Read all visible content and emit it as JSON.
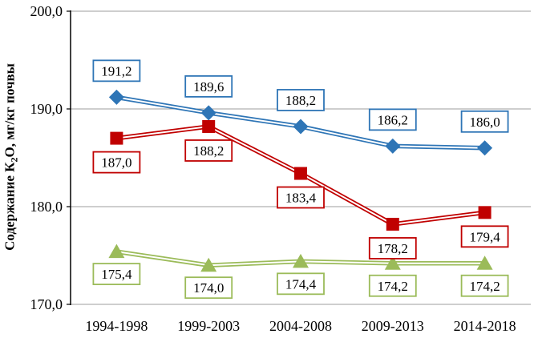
{
  "chart_data": {
    "type": "line",
    "title": "",
    "ylabel_parts": {
      "prefix": "Содержание К",
      "sub": "2",
      "suffix": "О, мг/кг почвы"
    },
    "categories": [
      "1994-1998",
      "1999-2003",
      "2004-2008",
      "2009-2013",
      "2014-2018"
    ],
    "series": [
      {
        "name": "series-blue-diamond",
        "marker": "diamond",
        "color": "#2E75B6",
        "values": [
          191.2,
          189.6,
          188.2,
          186.2,
          186.0
        ],
        "labels": [
          "191,2",
          "189,6",
          "188,2",
          "186,2",
          "186,0"
        ],
        "label_side": "above"
      },
      {
        "name": "series-red-square",
        "marker": "square",
        "color": "#C00000",
        "values": [
          187.0,
          188.2,
          183.4,
          178.2,
          179.4
        ],
        "labels": [
          "187,0",
          "188,2",
          "183,4",
          "178,2",
          "179,4"
        ],
        "label_side": "below"
      },
      {
        "name": "series-green-triangle",
        "marker": "triangle",
        "color": "#9BBB59",
        "values": [
          175.4,
          174.0,
          174.4,
          174.2,
          174.2
        ],
        "labels": [
          "175,4",
          "174,0",
          "174,4",
          "174,2",
          "174,2"
        ],
        "label_side": "below"
      }
    ],
    "y_axis": {
      "min": 170,
      "max": 200,
      "step": 10,
      "tick_labels": [
        "200,0",
        "190,0",
        "180,0",
        "170,0"
      ]
    },
    "grid": true,
    "legend": false
  }
}
